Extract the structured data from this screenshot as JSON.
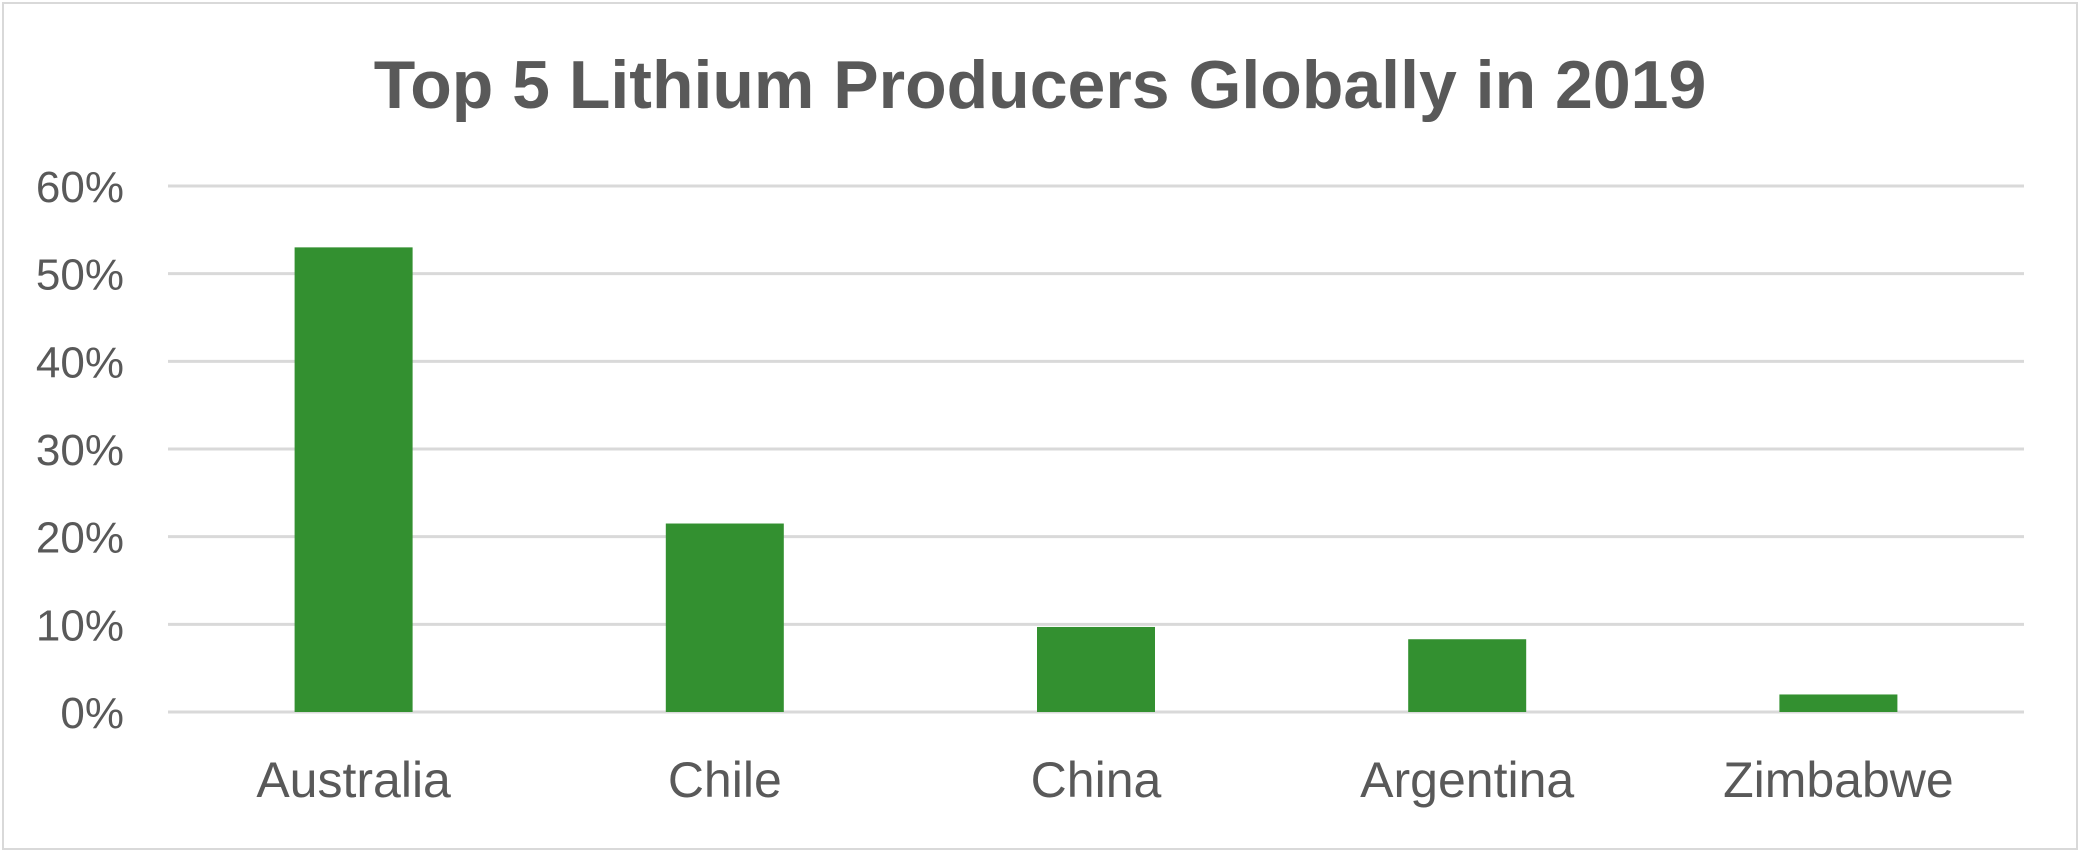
{
  "chart_data": {
    "type": "bar",
    "title": "Top 5 Lithium Producers Globally in 2019",
    "xlabel": "",
    "ylabel": "",
    "categories": [
      "Australia",
      "Chile",
      "China",
      "Argentina",
      "Zimbabwe"
    ],
    "values": [
      53,
      21.5,
      9.7,
      8.3,
      2
    ],
    "y_unit": "%",
    "ylim": [
      0,
      60
    ],
    "y_ticks": [
      0,
      10,
      20,
      30,
      40,
      50,
      60
    ],
    "y_tick_labels": [
      "0%",
      "10%",
      "20%",
      "30%",
      "40%",
      "50%",
      "60%"
    ],
    "grid": true,
    "legend": "none",
    "bar_color": "#339030",
    "grid_color": "#d9d9d9",
    "text_color": "#595959"
  }
}
